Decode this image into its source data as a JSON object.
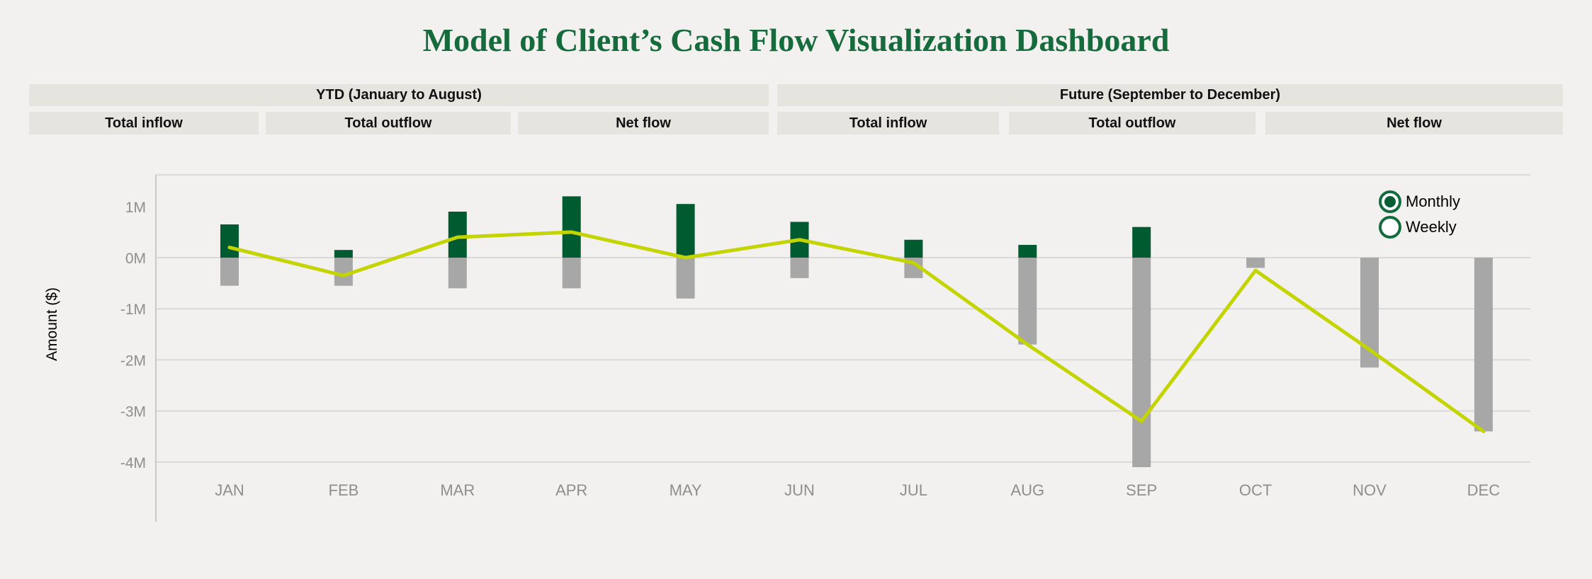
{
  "page": {
    "title": "Model of Client’s Cash Flow Visualization Dashboard"
  },
  "period_headers": {
    "ytd": {
      "label": "YTD (January to August)",
      "columns": [
        "Total inflow",
        "Total outflow",
        "Net flow"
      ]
    },
    "future": {
      "label": "Future (September to December)",
      "columns": [
        "Total inflow",
        "Total outflow",
        "Net flow"
      ]
    }
  },
  "legend": {
    "options": [
      {
        "label": "Monthly",
        "selected": true
      },
      {
        "label": "Weekly",
        "selected": false
      }
    ]
  },
  "colors": {
    "background": "#f2f1ef",
    "title": "#156b3c",
    "header_bg": "#e6e4df",
    "inflow": "#005c30",
    "outflow": "#a7a7a7",
    "net_line": "#c3d400",
    "grid": "#d9d9d9",
    "axis": "#c9c9c9",
    "tick_text": "#8e8e8e",
    "radio_ring": "#146c3e"
  },
  "chart_data": {
    "type": "bar+line",
    "title": "",
    "xlabel": "",
    "ylabel": "Amount ($)",
    "categories": [
      "JAN",
      "FEB",
      "MAR",
      "APR",
      "MAY",
      "JUN",
      "JUL",
      "AUG",
      "SEP",
      "OCT",
      "NOV",
      "DEC"
    ],
    "series": [
      {
        "name": "Total inflow",
        "type": "bar",
        "color_key": "inflow",
        "values": [
          0.65,
          0.15,
          0.9,
          1.2,
          1.05,
          0.7,
          0.35,
          0.25,
          0.6,
          0,
          0,
          0
        ]
      },
      {
        "name": "Total outflow",
        "type": "bar",
        "color_key": "outflow",
        "values": [
          -0.55,
          -0.55,
          -0.6,
          -0.6,
          -0.8,
          -0.4,
          -0.4,
          -1.7,
          -4.1,
          -0.2,
          -2.15,
          -3.4
        ]
      },
      {
        "name": "Net flow",
        "type": "line",
        "color_key": "net_line",
        "values": [
          0.2,
          -0.35,
          0.4,
          0.5,
          0.0,
          0.35,
          -0.1,
          -1.7,
          -3.2,
          -0.25,
          -1.8,
          -3.4
        ]
      }
    ],
    "yticks": [
      {
        "label": "1M",
        "value": 1
      },
      {
        "label": "0M",
        "value": 0
      },
      {
        "label": "-1M",
        "value": -1
      },
      {
        "label": "-2M",
        "value": -2
      },
      {
        "label": "-3M",
        "value": -3
      },
      {
        "label": "-4M",
        "value": -4
      }
    ],
    "gridlines_at": [
      0,
      -1,
      -2,
      -3,
      -4
    ],
    "ylim": [
      -5.2,
      1.63
    ],
    "value_unit": "M",
    "legend_position": "top-right",
    "grid": true
  }
}
